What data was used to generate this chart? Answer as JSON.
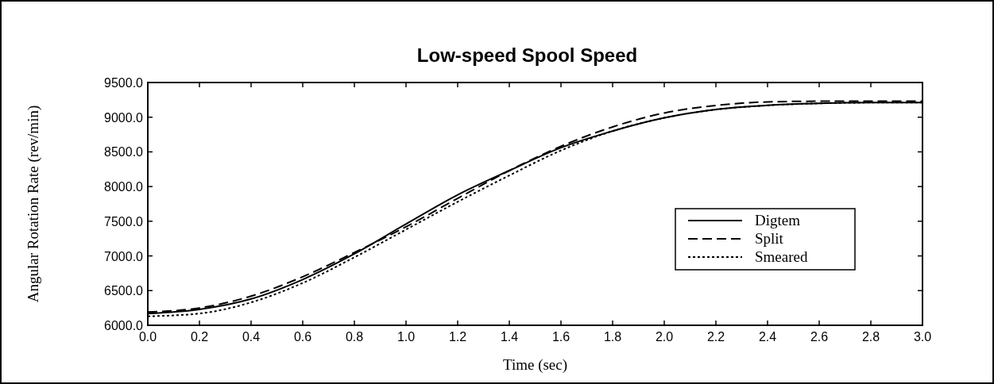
{
  "chart_data": {
    "type": "line",
    "title": "Low-speed Spool Speed",
    "xlabel": "Time (sec)",
    "ylabel": "Angular Rotation Rate (rev/min)",
    "x": [
      0,
      0.2,
      0.4,
      0.6,
      0.8,
      1.0,
      1.2,
      1.4,
      1.6,
      1.8,
      2.0,
      2.2,
      2.4,
      2.6,
      2.8,
      3.0
    ],
    "series": [
      {
        "name": "Digtem",
        "color": "#000000",
        "line_style": "solid",
        "values": [
          6170,
          6230,
          6380,
          6660,
          7030,
          7460,
          7880,
          8230,
          8560,
          8800,
          8990,
          9110,
          9170,
          9200,
          9210,
          9210
        ]
      },
      {
        "name": "Split",
        "color": "#000000",
        "line_style": "dashed",
        "values": [
          6190,
          6250,
          6420,
          6700,
          7050,
          7420,
          7830,
          8230,
          8580,
          8860,
          9060,
          9170,
          9220,
          9230,
          9230,
          9230
        ]
      },
      {
        "name": "Smeared",
        "color": "#000000",
        "line_style": "dotted",
        "values": [
          6130,
          6170,
          6330,
          6610,
          6980,
          7380,
          7780,
          8160,
          8520,
          8800,
          8990,
          9110,
          9170,
          9200,
          9210,
          9210
        ]
      }
    ],
    "xlim": [
      0,
      3
    ],
    "ylim": [
      6000,
      9500
    ],
    "xticks": [
      {
        "value": 0,
        "label": "0.0"
      },
      {
        "value": 0.2,
        "label": "0.2"
      },
      {
        "value": 0.4,
        "label": "0.4"
      },
      {
        "value": 0.6,
        "label": "0.6"
      },
      {
        "value": 0.8,
        "label": "0.8"
      },
      {
        "value": 1.0,
        "label": "1.0"
      },
      {
        "value": 1.2,
        "label": "1.2"
      },
      {
        "value": 1.4,
        "label": "1.4"
      },
      {
        "value": 1.6,
        "label": "1.6"
      },
      {
        "value": 1.8,
        "label": "1.8"
      },
      {
        "value": 2.0,
        "label": "2.0"
      },
      {
        "value": 2.2,
        "label": "2.2"
      },
      {
        "value": 2.4,
        "label": "2.4"
      },
      {
        "value": 2.6,
        "label": "2.6"
      },
      {
        "value": 2.8,
        "label": "2.8"
      },
      {
        "value": 3.0,
        "label": "3.0"
      }
    ],
    "yticks": [
      {
        "value": 6000,
        "label": "6000.0"
      },
      {
        "value": 6500,
        "label": "6500.0"
      },
      {
        "value": 7000,
        "label": "7000.0"
      },
      {
        "value": 7500,
        "label": "7500.0"
      },
      {
        "value": 8000,
        "label": "8000.0"
      },
      {
        "value": 8500,
        "label": "8500.0"
      },
      {
        "value": 9000,
        "label": "9000.0"
      },
      {
        "value": 9500,
        "label": "9500.0"
      }
    ],
    "grid": false,
    "legend": "right",
    "marker": "none"
  }
}
